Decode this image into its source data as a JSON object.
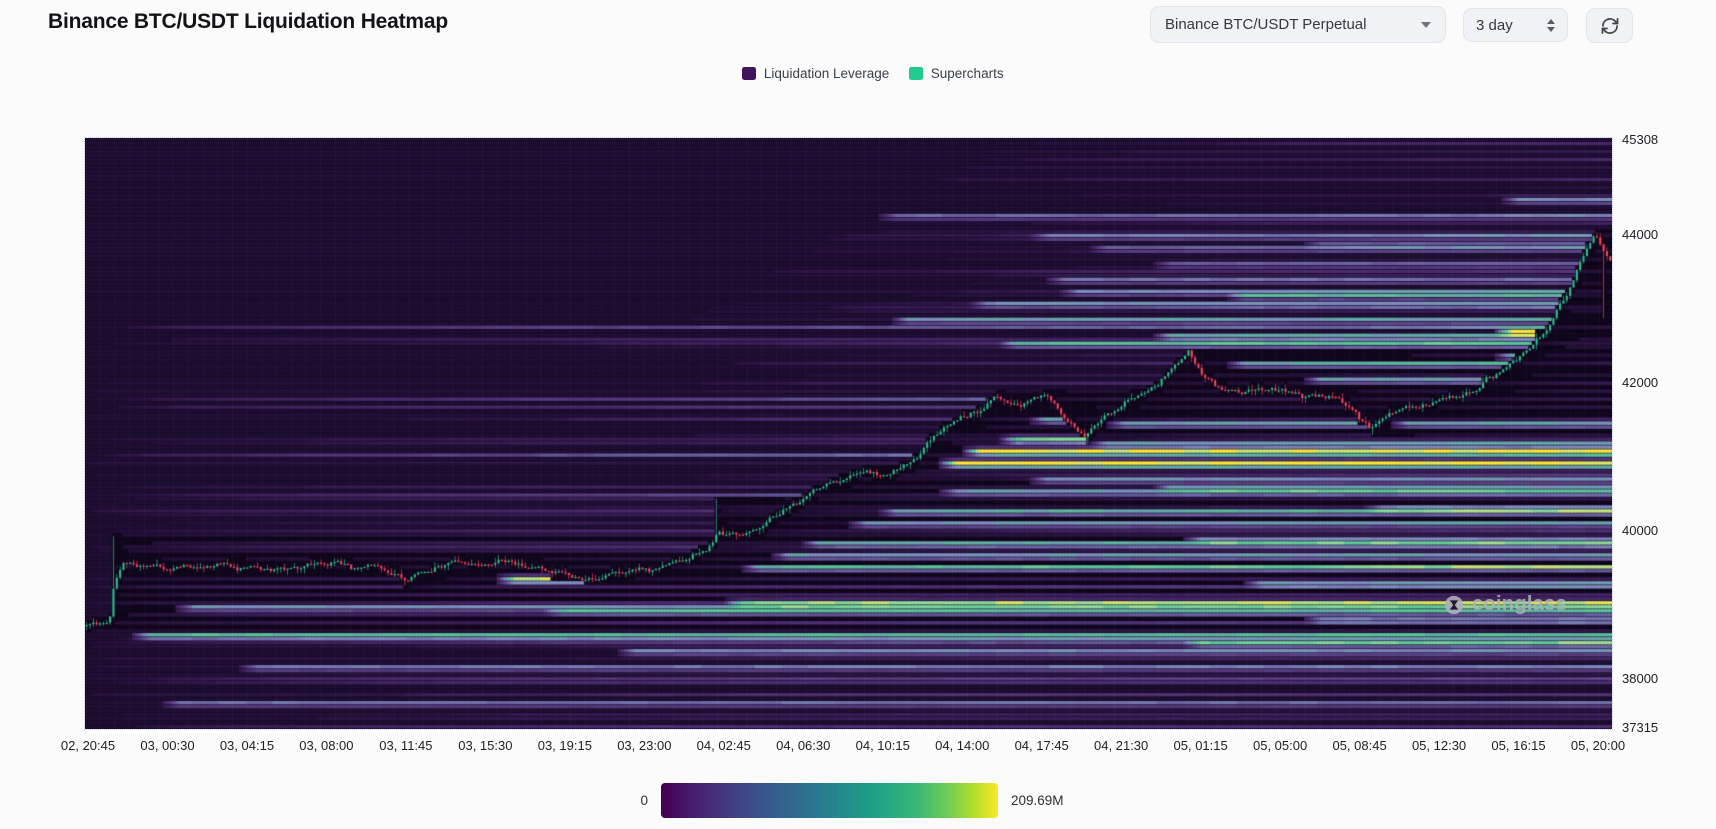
{
  "header": {
    "title": "Binance BTC/USDT Liquidation Heatmap",
    "pair_select": "Binance BTC/USDT Perpetual",
    "interval": "3 day"
  },
  "legend": {
    "items": [
      {
        "label": "Liquidation Leverage",
        "color": "#401458"
      },
      {
        "label": "Supercharts",
        "color": "#1ecb8c"
      }
    ]
  },
  "watermark": {
    "text": "coinglass"
  },
  "colorbar": {
    "min": "0",
    "max": "209.69M"
  },
  "chart_data": {
    "type": "heatmap",
    "title": "Binance BTC/USDT Liquidation Heatmap",
    "x_labels": [
      "02, 20:45",
      "03, 00:30",
      "03, 04:15",
      "03, 08:00",
      "03, 11:45",
      "03, 15:30",
      "03, 19:15",
      "03, 23:00",
      "04, 02:45",
      "04, 06:30",
      "04, 10:15",
      "04, 14:00",
      "04, 17:45",
      "04, 21:30",
      "05, 01:15",
      "05, 05:00",
      "05, 08:45",
      "05, 12:30",
      "05, 16:15",
      "05, 20:00"
    ],
    "y_ticks": [
      45308,
      44000,
      42000,
      40000,
      38000,
      37315
    ],
    "y_min": 37315,
    "y_max": 45308,
    "candle_up": "#2fbe8f",
    "candle_down": "#f5475e",
    "heat_colormap": [
      [
        0,
        30,
        14,
        49
      ],
      [
        0.12,
        52,
        26,
        79
      ],
      [
        0.25,
        72,
        40,
        106
      ],
      [
        0.37,
        88,
        62,
        130
      ],
      [
        0.48,
        106,
        98,
        162
      ],
      [
        0.58,
        128,
        142,
        192
      ],
      [
        0.68,
        98,
        172,
        165
      ],
      [
        0.77,
        90,
        201,
        153
      ],
      [
        0.86,
        150,
        222,
        158
      ],
      [
        0.93,
        215,
        234,
        112
      ],
      [
        1,
        255,
        232,
        54
      ]
    ],
    "bar_colormap": [
      [
        0,
        68,
        1,
        84
      ],
      [
        0.13,
        72,
        40,
        120
      ],
      [
        0.25,
        62,
        74,
        137
      ],
      [
        0.38,
        49,
        104,
        142
      ],
      [
        0.5,
        38,
        130,
        142
      ],
      [
        0.62,
        31,
        158,
        137
      ],
      [
        0.75,
        53,
        183,
        121
      ],
      [
        0.85,
        109,
        205,
        89
      ],
      [
        0.93,
        180,
        222,
        44
      ],
      [
        1,
        253,
        231,
        37
      ]
    ],
    "price_anchors": [
      [
        0,
        38720
      ],
      [
        0.015,
        38760
      ],
      [
        0.018,
        39300
      ],
      [
        0.024,
        39560
      ],
      [
        0.055,
        39480
      ],
      [
        0.09,
        39560
      ],
      [
        0.125,
        39450
      ],
      [
        0.16,
        39560
      ],
      [
        0.195,
        39500
      ],
      [
        0.21,
        39340
      ],
      [
        0.23,
        39520
      ],
      [
        0.27,
        39600
      ],
      [
        0.305,
        39460
      ],
      [
        0.325,
        39310
      ],
      [
        0.345,
        39430
      ],
      [
        0.365,
        39490
      ],
      [
        0.385,
        39560
      ],
      [
        0.405,
        39750
      ],
      [
        0.415,
        40010
      ],
      [
        0.43,
        39930
      ],
      [
        0.45,
        40180
      ],
      [
        0.47,
        40480
      ],
      [
        0.49,
        40700
      ],
      [
        0.51,
        40820
      ],
      [
        0.525,
        40740
      ],
      [
        0.545,
        41000
      ],
      [
        0.56,
        41350
      ],
      [
        0.58,
        41600
      ],
      [
        0.598,
        41830
      ],
      [
        0.612,
        41690
      ],
      [
        0.628,
        41880
      ],
      [
        0.645,
        41480
      ],
      [
        0.655,
        41260
      ],
      [
        0.668,
        41560
      ],
      [
        0.685,
        41750
      ],
      [
        0.703,
        42000
      ],
      [
        0.712,
        42200
      ],
      [
        0.723,
        42430
      ],
      [
        0.733,
        42080
      ],
      [
        0.742,
        41930
      ],
      [
        0.76,
        41870
      ],
      [
        0.78,
        41900
      ],
      [
        0.8,
        41840
      ],
      [
        0.82,
        41790
      ],
      [
        0.833,
        41560
      ],
      [
        0.843,
        41360
      ],
      [
        0.858,
        41640
      ],
      [
        0.875,
        41700
      ],
      [
        0.89,
        41760
      ],
      [
        0.905,
        41850
      ],
      [
        0.92,
        42020
      ],
      [
        0.936,
        42250
      ],
      [
        0.95,
        42480
      ],
      [
        0.962,
        42820
      ],
      [
        0.972,
        43180
      ],
      [
        0.982,
        43650
      ],
      [
        0.99,
        44020
      ],
      [
        1,
        43660
      ]
    ],
    "wick_spikes": [
      [
        0.018,
        39920,
        "high"
      ],
      [
        0.413,
        40430,
        "high"
      ],
      [
        0.657,
        41160,
        "low"
      ],
      [
        0.845,
        41290,
        "low"
      ],
      [
        0.995,
        42870,
        "low"
      ]
    ],
    "big_orders": [
      [
        0.56,
        40890,
        1.0
      ],
      [
        0.575,
        41060,
        0.95
      ],
      [
        0.27,
        39330,
        0.9
      ],
      [
        0.6,
        41210,
        0.7
      ],
      [
        0.925,
        42700,
        0.95
      ],
      [
        0.925,
        42360,
        0.55
      ],
      [
        0.03,
        38600,
        0.6
      ],
      [
        0.06,
        38950,
        0.42
      ],
      [
        0.1,
        38150,
        0.35
      ],
      [
        0.05,
        37650,
        0.32
      ],
      [
        0.3,
        38900,
        0.38
      ],
      [
        0.35,
        38350,
        0.4
      ],
      [
        0.42,
        39000,
        0.62
      ],
      [
        0.43,
        39500,
        0.55
      ],
      [
        0.45,
        39650,
        0.45
      ],
      [
        0.47,
        39850,
        0.5
      ],
      [
        0.5,
        40100,
        0.42
      ],
      [
        0.52,
        40250,
        0.48
      ],
      [
        0.56,
        40550,
        0.45
      ],
      [
        0.62,
        40700,
        0.4
      ],
      [
        0.62,
        41500,
        0.48
      ],
      [
        0.67,
        41450,
        0.48
      ],
      [
        0.858,
        41450,
        0.48
      ],
      [
        0.66,
        41200,
        0.45
      ],
      [
        0.7,
        40600,
        0.42
      ],
      [
        0.72,
        39900,
        0.4
      ],
      [
        0.76,
        39300,
        0.44
      ],
      [
        0.8,
        38800,
        0.35
      ],
      [
        0.84,
        40300,
        0.36
      ],
      [
        0.72,
        38450,
        0.42
      ],
      [
        0.52,
        44250,
        0.3
      ],
      [
        0.93,
        44450,
        0.4
      ],
      [
        0.62,
        44000,
        0.28
      ],
      [
        0.53,
        42850,
        0.44
      ],
      [
        0.58,
        43050,
        0.38
      ],
      [
        0.6,
        42550,
        0.45
      ],
      [
        0.63,
        43400,
        0.33
      ],
      [
        0.64,
        43250,
        0.36
      ],
      [
        0.66,
        43800,
        0.27
      ],
      [
        0.7,
        43600,
        0.28
      ],
      [
        0.7,
        42650,
        0.5
      ],
      [
        0.75,
        43150,
        0.38
      ],
      [
        0.8,
        43900,
        0.26
      ],
      [
        0.75,
        42250,
        0.5
      ],
      [
        0.8,
        42050,
        0.45
      ]
    ],
    "sim": {
      "candles": 456,
      "rows": 148,
      "seed": 11,
      "big": 95,
      "tiers": [
        [
          0.004,
          0.1,
          0.85
        ],
        [
          0.009,
          0.14,
          0.8
        ],
        [
          0.016,
          0.22,
          0.7
        ],
        [
          0.025,
          0.32,
          0.62
        ],
        [
          0.04,
          0.45,
          0.55
        ],
        [
          0.055,
          0.5,
          0.5
        ],
        [
          0.08,
          0.42,
          0.45
        ]
      ]
    }
  }
}
